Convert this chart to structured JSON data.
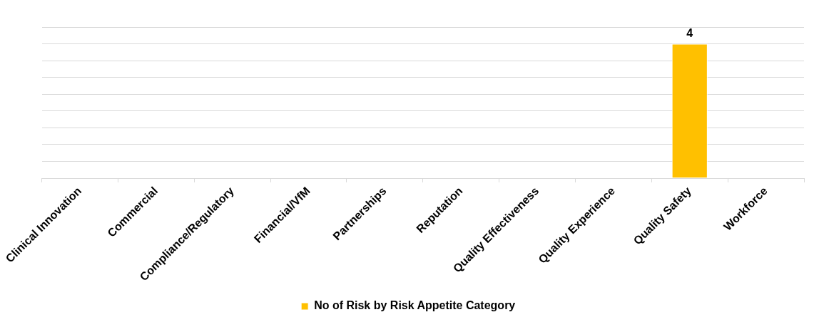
{
  "chart_data": {
    "type": "bar",
    "categories": [
      "Clinical Innovation",
      "Commercial",
      "Compliance/Regulatory",
      "Financial/VfM",
      "Partnerships",
      "Reputation",
      "Quality Effectiveness",
      "Quality Experience",
      "Quality Safety",
      "Workforce"
    ],
    "series": [
      {
        "name": "No of Risk by Risk Appetite Category",
        "color": "#ffc000",
        "values": [
          null,
          null,
          null,
          null,
          null,
          null,
          null,
          null,
          4,
          null
        ]
      }
    ],
    "ylim": [
      0,
      4.5
    ],
    "yticks": [
      {
        "value": 0,
        "label": null
      },
      {
        "value": 0.5,
        "label": null
      },
      {
        "value": 1,
        "label": null
      },
      {
        "value": 1.5,
        "label": null
      },
      {
        "value": 2,
        "label": null
      },
      {
        "value": 2.5,
        "label": null
      },
      {
        "value": 3,
        "label": null
      },
      {
        "value": 3.5,
        "label": null
      },
      {
        "value": 4,
        "label": null
      },
      {
        "value": 4.5,
        "label": null
      }
    ],
    "tick_labels": "x",
    "grid": "y",
    "legend": "bottom",
    "data_labels": true
  }
}
